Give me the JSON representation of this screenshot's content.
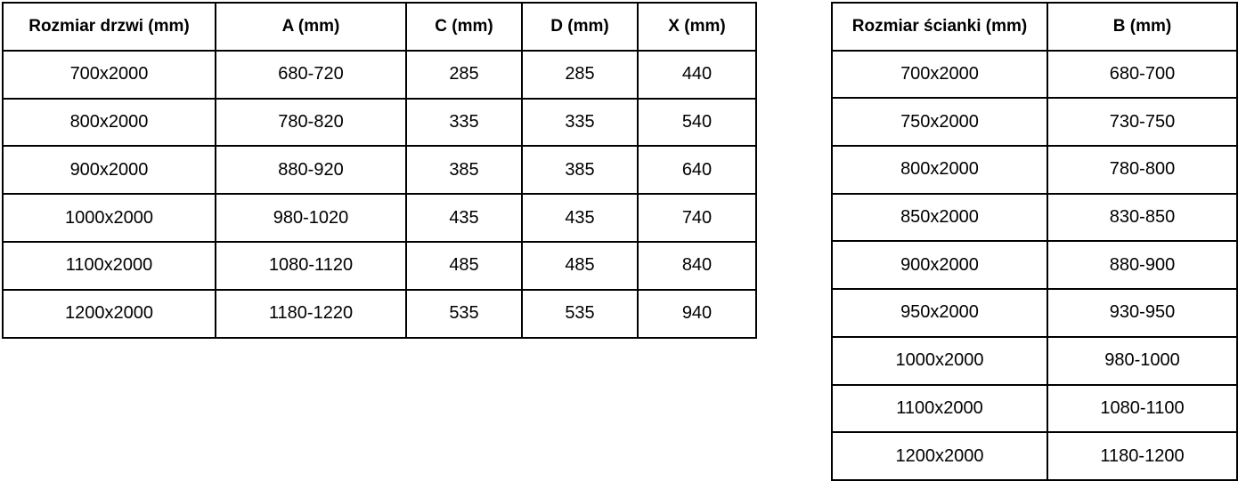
{
  "doors_table": {
    "name": "door-sizes-table",
    "headers": [
      "Rozmiar drzwi (mm)",
      "A (mm)",
      "C (mm)",
      "D (mm)",
      "X (mm)"
    ],
    "rows": [
      [
        "700x2000",
        "680-720",
        "285",
        "285",
        "440"
      ],
      [
        "800x2000",
        "780-820",
        "335",
        "335",
        "540"
      ],
      [
        "900x2000",
        "880-920",
        "385",
        "385",
        "640"
      ],
      [
        "1000x2000",
        "980-1020",
        "435",
        "435",
        "740"
      ],
      [
        "1100x2000",
        "1080-1120",
        "485",
        "485",
        "840"
      ],
      [
        "1200x2000",
        "1180-1220",
        "535",
        "535",
        "940"
      ]
    ]
  },
  "wall_table": {
    "name": "wall-panel-sizes-table",
    "headers": [
      "Rozmiar ścianki (mm)",
      "B (mm)"
    ],
    "rows": [
      [
        "700x2000",
        "680-700"
      ],
      [
        "750x2000",
        "730-750"
      ],
      [
        "800x2000",
        "780-800"
      ],
      [
        "850x2000",
        "830-850"
      ],
      [
        "900x2000",
        "880-900"
      ],
      [
        "950x2000",
        "930-950"
      ],
      [
        "1000x2000",
        "980-1000"
      ],
      [
        "1100x2000",
        "1080-1100"
      ],
      [
        "1200x2000",
        "1180-1200"
      ]
    ]
  },
  "colors": {
    "border": "#000000",
    "background": "#ffffff",
    "text": "#000000"
  }
}
